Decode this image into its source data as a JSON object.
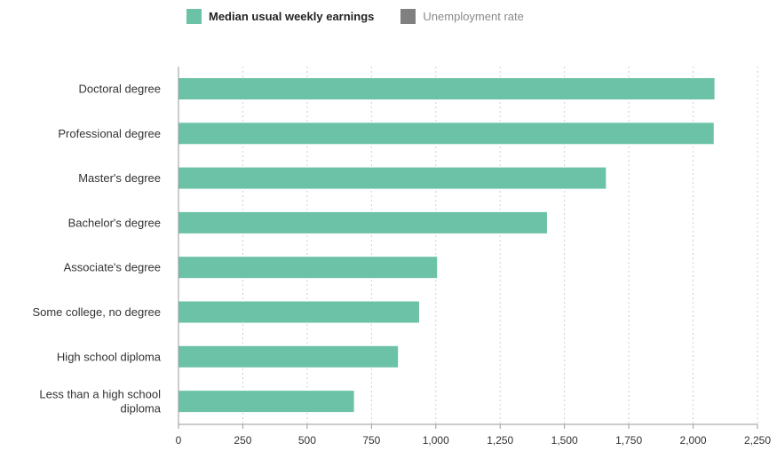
{
  "legend": {
    "items": [
      {
        "label": "Median usual weekly earnings",
        "color": "#6cc2a7",
        "active": true
      },
      {
        "label": "Unemployment rate",
        "color": "#808080",
        "active": false
      }
    ]
  },
  "chart_data": {
    "type": "bar",
    "orientation": "horizontal",
    "categories": [
      "Doctoral degree",
      "Professional degree",
      "Master's degree",
      "Bachelor's degree",
      "Associate's degree",
      "Some college, no degree",
      "High school diploma",
      "Less than a high school diploma"
    ],
    "category_lines": [
      [
        "Doctoral degree"
      ],
      [
        "Professional degree"
      ],
      [
        "Master's degree"
      ],
      [
        "Bachelor's degree"
      ],
      [
        "Associate's degree"
      ],
      [
        "Some college, no degree"
      ],
      [
        "High school diploma"
      ],
      [
        "Less than a high school",
        "diploma"
      ]
    ],
    "series": [
      {
        "name": "Median usual weekly earnings",
        "values": [
          2083,
          2080,
          1661,
          1432,
          1005,
          935,
          853,
          682
        ]
      }
    ],
    "xlim": [
      0,
      2250
    ],
    "xticks": [
      0,
      250,
      500,
      750,
      1000,
      1250,
      1500,
      1750,
      2000,
      2250
    ],
    "xtick_labels": [
      "0",
      "250",
      "500",
      "750",
      "1,000",
      "1,250",
      "1,500",
      "1,750",
      "2,000",
      "2,250"
    ],
    "grid": true,
    "bar_color": "#6cc2a7",
    "legend_position": "top"
  }
}
